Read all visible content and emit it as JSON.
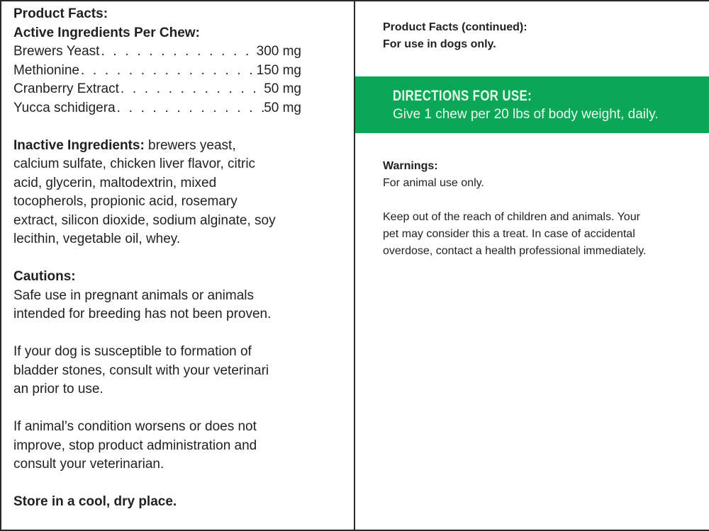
{
  "left": {
    "title": "Product Facts:",
    "active_heading": "Active Ingredients Per Chew:",
    "active_ingredients": [
      {
        "name": "Brewers Yeast",
        "amount": "300 mg"
      },
      {
        "name": "Methionine",
        "amount": "150 mg"
      },
      {
        "name": "Cranberry Extract",
        "amount": "50 mg"
      },
      {
        "name": "Yucca schidigera",
        "amount": "50 mg"
      }
    ],
    "inactive_label": "Inactive Ingredients:",
    "inactive_lines": [
      " brewers yeast,",
      "calcium sulfate, chicken liver flavor, citric",
      "acid, glycerin, maltodextrin, mixed",
      "tocopherols, propionic acid, rosemary",
      "extract, silicon dioxide, sodium alginate, soy",
      "lecithin, vegetable oil, whey."
    ],
    "cautions_heading": "Cautions:",
    "caution_1": [
      "Safe use in pregnant animals or animals",
      "intended for breeding has not been proven."
    ],
    "caution_2": [
      "If your dog is susceptible to formation of",
      "bladder stones, consult with your veterinari",
      "an prior to use."
    ],
    "caution_3": [
      "If animal’s condition worsens or does not",
      "improve, stop product administration and",
      "consult your veterinarian."
    ],
    "storage": "Store in a cool, dry place."
  },
  "right": {
    "title": "Product Facts (continued):",
    "dogs_only": "For use in dogs only.",
    "directions_heading": "DIRECTIONS FOR USE:",
    "directions_text": "Give 1 chew per 20 lbs of body weight, daily.",
    "warnings_heading": "Warnings:",
    "warnings_line": "For animal use only.",
    "warning_para": [
      "Keep out of the reach of children and animals. Your",
      "pet may consider this a treat. In case of accidental",
      "overdose, contact a health professional immediately."
    ]
  },
  "colors": {
    "band": "#0aa757",
    "text": "#231f20"
  }
}
